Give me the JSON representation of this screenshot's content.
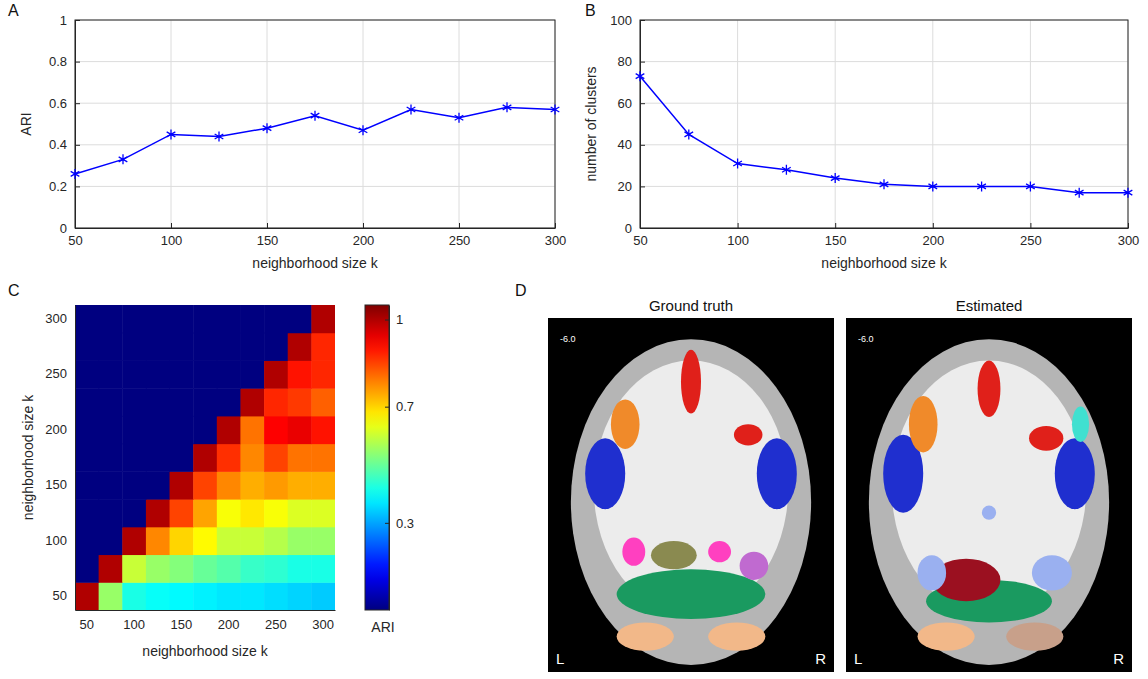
{
  "chart_data": [
    {
      "panel": "A",
      "type": "line",
      "x": [
        50,
        75,
        100,
        125,
        150,
        175,
        200,
        225,
        250,
        275,
        300
      ],
      "values": [
        0.26,
        0.33,
        0.45,
        0.44,
        0.48,
        0.54,
        0.47,
        0.57,
        0.53,
        0.58,
        0.57
      ],
      "color": "#0000ff",
      "marker": "asterisk",
      "xlabel": "neighborhood size k",
      "ylabel": "ARI",
      "xlim": [
        50,
        300
      ],
      "xticks": [
        50,
        100,
        150,
        200,
        250,
        300
      ],
      "ylim": [
        0,
        1
      ],
      "yticks": [
        0,
        0.2,
        0.4,
        0.6,
        0.8,
        1
      ],
      "grid": true
    },
    {
      "panel": "B",
      "type": "line",
      "x": [
        50,
        75,
        100,
        125,
        150,
        175,
        200,
        225,
        250,
        275,
        300
      ],
      "values": [
        73,
        45,
        31,
        28,
        24,
        21,
        20,
        20,
        20,
        17,
        17
      ],
      "color": "#0000ff",
      "marker": "asterisk",
      "xlabel": "neighborhood size k",
      "ylabel": "number of clusters",
      "xlim": [
        50,
        300
      ],
      "xticks": [
        50,
        100,
        150,
        200,
        250,
        300
      ],
      "ylim": [
        0,
        100
      ],
      "yticks": [
        0,
        20,
        40,
        60,
        80,
        100
      ],
      "grid": true
    },
    {
      "panel": "C",
      "type": "heatmap",
      "categories": [
        50,
        null,
        100,
        null,
        150,
        null,
        200,
        null,
        250,
        null,
        300
      ],
      "xlabel": "neighborhood size k",
      "ylabel": "neighborhood size k",
      "cells": [
        [
          1,
          0.55,
          0.42,
          0.4,
          0.39,
          0.38,
          0.37,
          0.37,
          0.36,
          0.35,
          0.34
        ],
        [
          0,
          1,
          0.6,
          0.55,
          0.53,
          0.5,
          0.48,
          0.45,
          0.44,
          0.42,
          0.42
        ],
        [
          0,
          0,
          1,
          0.78,
          0.7,
          0.66,
          0.6,
          0.6,
          0.58,
          0.55,
          0.55
        ],
        [
          0,
          0,
          0,
          1,
          0.85,
          0.75,
          0.65,
          0.68,
          0.65,
          0.62,
          0.62
        ],
        [
          0,
          0,
          0,
          0,
          1,
          0.85,
          0.78,
          0.74,
          0.76,
          0.74,
          0.74
        ],
        [
          0,
          0,
          0,
          0,
          0,
          1,
          0.87,
          0.78,
          0.85,
          0.8,
          0.8
        ],
        [
          0,
          0,
          0,
          0,
          0,
          0,
          1,
          0.8,
          0.92,
          0.94,
          0.9
        ],
        [
          0,
          0,
          0,
          0,
          0,
          0,
          0,
          1,
          0.88,
          0.86,
          0.82
        ],
        [
          0,
          0,
          0,
          0,
          0,
          0,
          0,
          0,
          1,
          0.9,
          0.88
        ],
        [
          0,
          0,
          0,
          0,
          0,
          0,
          0,
          0,
          0,
          1,
          0.88
        ],
        [
          0,
          0,
          0,
          0,
          0,
          0,
          0,
          0,
          0,
          0,
          1
        ]
      ],
      "colorbar": {
        "range": [
          0,
          1.05
        ],
        "ticks": [
          0.3,
          0.7,
          1
        ],
        "label": "ARI"
      }
    },
    {
      "panel": "D",
      "type": "image",
      "images": [
        {
          "title": "Ground truth",
          "slice": "-6.0",
          "left": "L",
          "right": "R"
        },
        {
          "title": "Estimated",
          "slice": "-6.0",
          "left": "L",
          "right": "R"
        }
      ]
    }
  ]
}
